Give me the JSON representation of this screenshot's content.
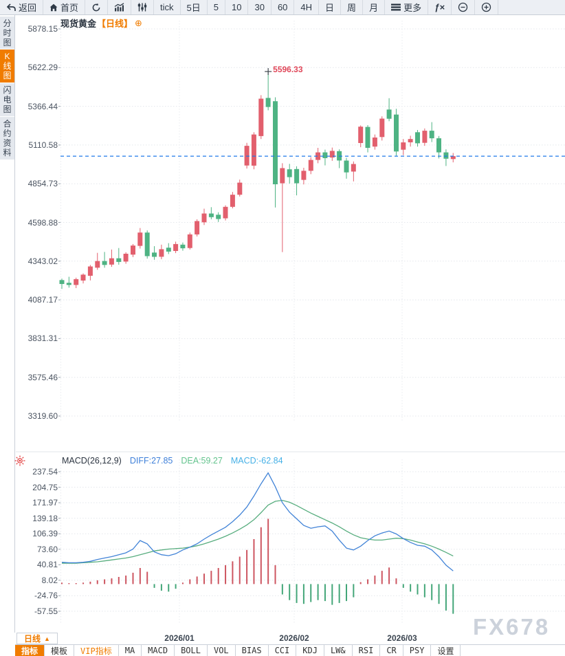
{
  "colors": {
    "accent": "#f07c00",
    "candle_up": "#e25f6d",
    "candle_down": "#4eb383",
    "hist_up": "#cd5560",
    "hist_down": "#43a678",
    "diff_line": "#4183d7",
    "dea_line": "#57ad7e",
    "macd_value_text": "#45b0e6",
    "current_price_line": "#1e78e8",
    "high_marker_text": "#e0485a"
  },
  "toolbar": {
    "buttons": [
      {
        "name": "back",
        "icon": "back-arrow-icon",
        "label": "返回"
      },
      {
        "name": "home",
        "icon": "home-icon",
        "label": "首页"
      },
      {
        "name": "refresh",
        "icon": "refresh-icon",
        "label": ""
      },
      {
        "name": "area-chart",
        "icon": "area-chart-icon",
        "label": ""
      },
      {
        "name": "candlestick",
        "icon": "candlestick-icon",
        "label": ""
      },
      {
        "name": "tick",
        "label": "tick"
      },
      {
        "name": "5d",
        "label": "5日"
      },
      {
        "name": "5",
        "label": "5"
      },
      {
        "name": "10",
        "label": "10"
      },
      {
        "name": "30",
        "label": "30"
      },
      {
        "name": "60",
        "label": "60"
      },
      {
        "name": "4h",
        "label": "4H"
      },
      {
        "name": "day",
        "label": "日"
      },
      {
        "name": "week",
        "label": "周"
      },
      {
        "name": "month",
        "label": "月"
      },
      {
        "name": "more",
        "icon": "menu-icon",
        "label": "更多"
      },
      {
        "name": "fx",
        "icon": "fx-icon",
        "label": ""
      },
      {
        "name": "zoom-out",
        "icon": "zoom-out-icon",
        "label": ""
      },
      {
        "name": "zoom-in",
        "icon": "zoom-in-icon",
        "label": ""
      }
    ]
  },
  "sidebar": {
    "tabs": [
      {
        "name": "time-chart",
        "label": "分时图",
        "active": false
      },
      {
        "name": "kline-chart",
        "label": "K线图",
        "active": true
      },
      {
        "name": "lightning-chart",
        "label": "闪电图",
        "active": false
      },
      {
        "name": "contract-info",
        "label": "合约资料",
        "active": false
      }
    ]
  },
  "chart_header": {
    "symbol": "现货黄金",
    "period": "【日线】",
    "add_icon": "⊕"
  },
  "price_marker": {
    "value": "5596.33"
  },
  "macd_header": {
    "title": "MACD(26,12,9)",
    "diff_label": "DIFF:27.85",
    "dea_label": "DEA:59.27",
    "macd_label": "MACD:-62.84"
  },
  "bottom": {
    "period_button": "日线",
    "period_button_arrow": "▲",
    "x_labels": [
      "2026/01",
      "2026/02",
      "2026/03"
    ],
    "indicator_tabs": [
      {
        "label": "指标",
        "active": true
      },
      {
        "label": "模板"
      },
      {
        "label": "VIP指标",
        "vip": true
      },
      {
        "label": "MA"
      },
      {
        "label": "MACD"
      },
      {
        "label": "BOLL"
      },
      {
        "label": "VOL"
      },
      {
        "label": "BIAS"
      },
      {
        "label": "CCI"
      },
      {
        "label": "KDJ"
      },
      {
        "label": "LW&"
      },
      {
        "label": "RSI"
      },
      {
        "label": "CR"
      },
      {
        "label": "PSY"
      },
      {
        "label": "设置"
      }
    ]
  },
  "watermark": "FX678",
  "chart_data": {
    "type": "candlestick",
    "symbol": "现货黄金",
    "period": "日线",
    "price_axis_ticks": [
      5878.15,
      5622.29,
      5366.44,
      5110.58,
      4854.73,
      4598.88,
      4343.02,
      4087.17,
      3831.31,
      3575.46,
      3319.6
    ],
    "x_axis_labels": [
      "2026/01",
      "2026/02",
      "2026/03"
    ],
    "current_price": 5037,
    "high_marker": 5596.33,
    "candles_ohlc": [
      [
        4218,
        4228,
        4160,
        4192
      ],
      [
        4200,
        4240,
        4168,
        4186
      ],
      [
        4186,
        4234,
        4165,
        4224
      ],
      [
        4215,
        4262,
        4196,
        4254
      ],
      [
        4246,
        4318,
        4216,
        4308
      ],
      [
        4300,
        4398,
        4286,
        4344
      ],
      [
        4344,
        4404,
        4300,
        4318
      ],
      [
        4320,
        4420,
        4306,
        4362
      ],
      [
        4362,
        4430,
        4320,
        4338
      ],
      [
        4340,
        4402,
        4326,
        4392
      ],
      [
        4386,
        4456,
        4370,
        4446
      ],
      [
        4444,
        4562,
        4426,
        4532
      ],
      [
        4532,
        4546,
        4360,
        4376
      ],
      [
        4400,
        4442,
        4352,
        4372
      ],
      [
        4372,
        4452,
        4356,
        4422
      ],
      [
        4432,
        4462,
        4390,
        4406
      ],
      [
        4410,
        4472,
        4396,
        4456
      ],
      [
        4452,
        4466,
        4412,
        4428
      ],
      [
        4430,
        4532,
        4420,
        4520
      ],
      [
        4520,
        4620,
        4506,
        4608
      ],
      [
        4600,
        4690,
        4582,
        4658
      ],
      [
        4658,
        4700,
        4620,
        4634
      ],
      [
        4650,
        4666,
        4602,
        4622
      ],
      [
        4626,
        4712,
        4612,
        4702
      ],
      [
        4702,
        4800,
        4692,
        4782
      ],
      [
        4782,
        4882,
        4770,
        4862
      ],
      [
        4975,
        5125,
        4955,
        5105
      ],
      [
        4974,
        5195,
        4950,
        5180
      ],
      [
        5170,
        5440,
        5150,
        5417
      ],
      [
        5422,
        5596.33,
        5340,
        5362
      ],
      [
        5400,
        5426,
        4698,
        4851
      ],
      [
        4858,
        4990,
        4403,
        4958
      ],
      [
        4950,
        4986,
        4856,
        4898
      ],
      [
        4952,
        4970,
        4778,
        4858
      ],
      [
        4880,
        4960,
        4850,
        4940
      ],
      [
        4940,
        5030,
        4918,
        5012
      ],
      [
        5012,
        5092,
        4990,
        5062
      ],
      [
        5062,
        5080,
        4976,
        5024
      ],
      [
        5028,
        5094,
        5006,
        5072
      ],
      [
        5070,
        5082,
        4958,
        5008
      ],
      [
        5008,
        5026,
        4888,
        4930
      ],
      [
        4935,
        5002,
        4870,
        4985
      ],
      [
        5124,
        5240,
        5096,
        5232
      ],
      [
        5230,
        5242,
        5062,
        5092
      ],
      [
        5100,
        5180,
        5080,
        5160
      ],
      [
        5163,
        5300,
        5140,
        5285
      ],
      [
        5345,
        5420,
        5268,
        5284
      ],
      [
        5312,
        5350,
        5040,
        5068
      ],
      [
        5080,
        5150,
        5044,
        5128
      ],
      [
        5128,
        5172,
        5100,
        5150
      ],
      [
        5195,
        5210,
        5100,
        5122
      ],
      [
        5125,
        5220,
        5105,
        5205
      ],
      [
        5205,
        5262,
        5130,
        5155
      ],
      [
        5155,
        5170,
        5022,
        5062
      ],
      [
        5062,
        5082,
        4972,
        5020
      ],
      [
        5018,
        5058,
        4996,
        5037
      ]
    ],
    "macd": {
      "params": [
        26,
        12,
        9
      ],
      "axis_ticks": [
        237.54,
        204.75,
        171.97,
        139.18,
        106.39,
        73.6,
        40.81,
        8.02,
        -24.76,
        -57.55
      ],
      "diff": [
        46,
        45,
        45,
        46,
        48,
        52,
        55,
        58,
        62,
        66,
        74,
        92,
        85,
        68,
        62,
        60,
        64,
        72,
        78,
        85,
        95,
        104,
        112,
        120,
        132,
        146,
        163,
        186,
        212,
        235,
        206,
        172,
        152,
        138,
        124,
        118,
        121,
        123,
        112,
        93,
        76,
        72,
        80,
        92,
        102,
        108,
        112,
        106,
        96,
        88,
        82,
        80,
        72,
        58,
        40,
        27.85
      ],
      "dea": [
        44,
        44,
        44,
        45,
        46,
        47,
        49,
        51,
        53,
        55,
        58,
        62,
        66,
        70,
        72,
        74,
        75,
        76,
        78,
        81,
        85,
        90,
        95,
        101,
        108,
        116,
        125,
        136,
        151,
        167,
        175,
        177,
        173,
        166,
        158,
        150,
        143,
        136,
        129,
        121,
        112,
        104,
        98,
        95,
        93,
        93,
        95,
        97,
        96,
        93,
        89,
        85,
        80,
        74,
        67,
        59.27
      ],
      "hist": [
        3,
        2,
        2,
        3,
        5,
        8,
        10,
        12,
        15,
        18,
        24,
        34,
        26,
        -8,
        -14,
        -16,
        -10,
        3,
        10,
        16,
        22,
        28,
        34,
        40,
        48,
        58,
        72,
        95,
        120,
        138,
        40,
        -22,
        -34,
        -40,
        -42,
        -38,
        -34,
        -36,
        -44,
        -40,
        -36,
        -28,
        4,
        10,
        18,
        28,
        35,
        12,
        -8,
        -16,
        -22,
        -28,
        -34,
        -42,
        -56,
        -62.84
      ],
      "latest_diff": 27.85,
      "latest_dea": 59.27,
      "latest_macd": -62.84
    }
  }
}
